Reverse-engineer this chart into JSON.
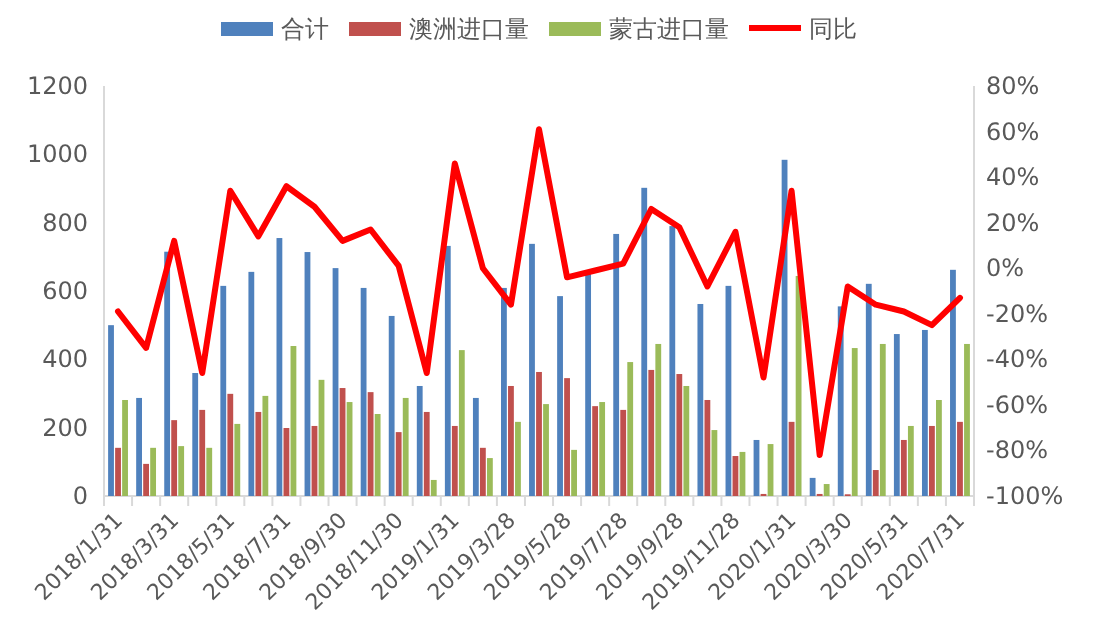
{
  "chart_data": {
    "type": "bar",
    "categories": [
      "2018/1/31",
      null,
      "2018/3/31",
      null,
      "2018/5/31",
      null,
      "2018/7/31",
      null,
      "2018/9/30",
      null,
      "2018/11/30",
      null,
      "2019/1/31",
      null,
      "2019/3/28",
      null,
      "2019/5/28",
      null,
      "2019/7/28",
      null,
      "2019/9/28",
      null,
      "2019/11/28",
      null,
      "2020/1/31",
      null,
      "2020/3/30",
      null,
      "2020/5/31",
      null,
      "2020/7/31"
    ],
    "series": [
      {
        "name": "合计",
        "color": "#4f81bd",
        "values": [
          500,
          287,
          715,
          360,
          615,
          656,
          755,
          714,
          667,
          609,
          527,
          322,
          732,
          287,
          609,
          738,
          585,
          650,
          767,
          902,
          790,
          562,
          615,
          164,
          984,
          53,
          555,
          621,
          474,
          486,
          662
        ]
      },
      {
        "name": "澳洲进口量",
        "color": "#c0504d",
        "values": [
          141,
          94,
          222,
          252,
          299,
          246,
          199,
          205,
          316,
          304,
          187,
          246,
          205,
          141,
          322,
          363,
          345,
          263,
          252,
          369,
          357,
          281,
          117,
          6,
          217,
          6,
          5,
          76,
          164,
          205,
          217
        ]
      },
      {
        "name": "蒙古进口量",
        "color": "#9bbb59",
        "values": [
          281,
          141,
          146,
          141,
          211,
          293,
          439,
          340,
          275,
          240,
          287,
          47,
          427,
          111,
          217,
          269,
          135,
          275,
          392,
          445,
          322,
          193,
          129,
          152,
          644,
          35,
          433,
          445,
          205,
          281,
          445
        ]
      },
      {
        "name": "同比",
        "type": "line",
        "axis": "y2",
        "color": "#ff0000",
        "values": [
          -19,
          -35,
          12,
          -46,
          34,
          14,
          36,
          27,
          12,
          17,
          1,
          -46,
          46,
          0,
          -16,
          61,
          -4,
          -1,
          2,
          26,
          18,
          -8,
          16,
          -48,
          34,
          -82,
          -8,
          -16,
          -19,
          -25,
          -13
        ]
      }
    ],
    "ylim": [
      0,
      1200
    ],
    "yticks": [
      0,
      200,
      400,
      600,
      800,
      1000,
      1200
    ],
    "y2lim": [
      -100,
      80
    ],
    "y2ticks": [
      {
        "value": -100,
        "label": "-100%"
      },
      {
        "value": -80,
        "label": "-80%"
      },
      {
        "value": -60,
        "label": "-60%"
      },
      {
        "value": -40,
        "label": "-40%"
      },
      {
        "value": -20,
        "label": "-20%"
      },
      {
        "value": 0,
        "label": "0%"
      },
      {
        "value": 20,
        "label": "20%"
      },
      {
        "value": 40,
        "label": "40%"
      },
      {
        "value": 60,
        "label": "60%"
      },
      {
        "value": 80,
        "label": "80%"
      }
    ],
    "legend": "top",
    "grid": false
  }
}
